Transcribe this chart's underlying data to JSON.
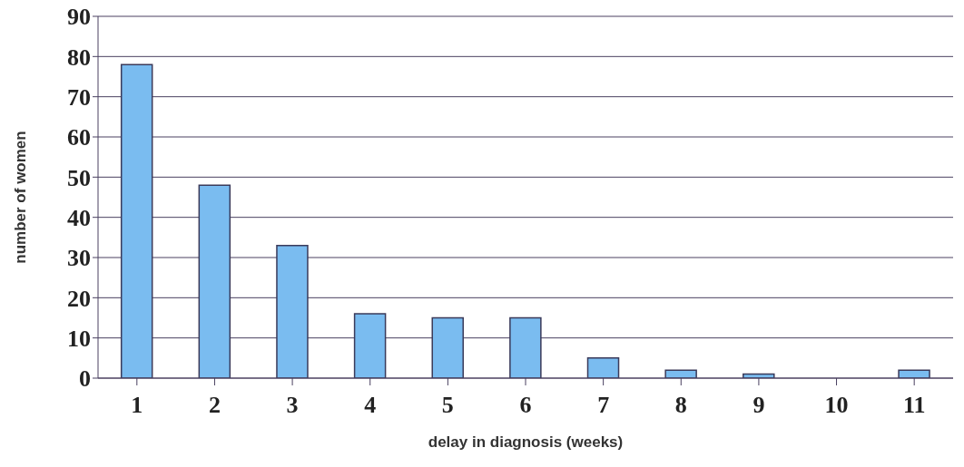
{
  "chart_data": {
    "type": "bar",
    "xlabel": "delay in diagnosis (weeks)",
    "ylabel": "number of women",
    "categories": [
      "1",
      "2",
      "3",
      "4",
      "5",
      "6",
      "7",
      "8",
      "9",
      "10",
      "11"
    ],
    "values": [
      78,
      48,
      33,
      16,
      15,
      15,
      5,
      2,
      1,
      0,
      2
    ],
    "color": "#7abcf0",
    "ylim": [
      0,
      90
    ],
    "yticks": [
      0,
      10,
      20,
      30,
      40,
      50,
      60,
      70,
      80,
      90
    ],
    "grid": "y"
  }
}
